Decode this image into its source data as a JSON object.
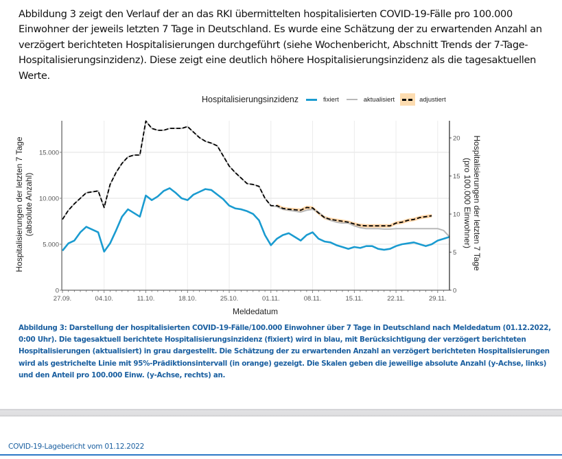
{
  "intro_text": "Abbildung 3 zeigt den Verlauf der an das RKI übermittelten hospitalisierten COVID-19-Fälle pro 100.000 Einwohner der jeweils letzten 7 Tage in Deutschland. Es wurde eine Schätzung der zu erwartenden Anzahl an verzögert berichteten Hospitalisierungen durchgeführt (siehe Wochenbericht, Abschnitt Trends der 7-Tage-Hospitalisierungsinzidenz). Diese zeigt eine deutlich höhere Hospitalisierungsinzidenz als die tagesaktuellen Werte.",
  "caption": "Abbildung 3: Darstellung der hospitalisierten COVID-19-Fälle/100.000 Einwohner über 7 Tage in Deutschland nach Meldedatum (01.12.2022, 0:00 Uhr). Die tagesaktuell berichtete Hospitalisierungsinzidenz (fixiert) wird in blau, mit Berücksichtigung der verzögert berichteten Hospitalisierungen (aktualisiert) in grau dargestellt. Die Schätzung der zu erwartenden Anzahl an verzögert berichteten Hospitalisierungen wird als gestrichelte Linie mit 95%-Prädiktionsintervall (in orange) gezeigt. Die Skalen geben die jeweilige absolute Anzahl (y-Achse, links) und den Anteil pro 100.000 Einw. (y-Achse, rechts) an.",
  "footer": "COVID-19-Lagebericht vom 01.12.2022",
  "chart_data": {
    "type": "line",
    "legend_title": "Hospitalisierungsinzidenz",
    "legend_position": "top",
    "xlabel": "Meldedatum",
    "ylabel_left": "Hospitalisierungen der letzten 7 Tage\n(absolute Anzahl)",
    "ylabel_right": "Hospitalisierungen der letzten 7 Tage\n(pro 100.000 Einwohner)",
    "ylim_left": [
      0,
      18500
    ],
    "yticks_left": [
      "0",
      "5.000",
      "10.000",
      "15.000"
    ],
    "yticks_left_values": [
      0,
      5000,
      10000,
      15000
    ],
    "ylim_right": [
      0,
      22.2
    ],
    "yticks_right": [
      "0",
      "5",
      "10",
      "15",
      "20"
    ],
    "yticks_right_values": [
      0,
      5,
      10,
      15,
      20
    ],
    "x_start": "27.09.",
    "xticks": [
      "27.09.",
      "04.10.",
      "11.10.",
      "18.10.",
      "25.10.",
      "01.11.",
      "08.11.",
      "15.11.",
      "22.11.",
      "29.11."
    ],
    "xticks_day": [
      0,
      7,
      14,
      21,
      28,
      35,
      42,
      49,
      56,
      63
    ],
    "xlim_days": [
      0,
      65
    ],
    "grid": true,
    "colors": {
      "fixiert": "#1a9bd0",
      "aktualisiert": "#b8b8b8",
      "adjustiert": "#000000",
      "interval": "#fdd3a4"
    },
    "series": [
      {
        "name": "fixiert",
        "unit": "absolute",
        "x_days": [
          0,
          1,
          2,
          3,
          4,
          5,
          6,
          7,
          8,
          9,
          10,
          11,
          12,
          13,
          14,
          15,
          16,
          17,
          18,
          19,
          20,
          21,
          22,
          23,
          24,
          25,
          26,
          27,
          28,
          29,
          30,
          31,
          32,
          33,
          34,
          35,
          36,
          37,
          38,
          39,
          40,
          41,
          42,
          43,
          44,
          45,
          46,
          47,
          48,
          49,
          50,
          51,
          52,
          53,
          54,
          55,
          56,
          57,
          58,
          59,
          60,
          61,
          62,
          63,
          64,
          65
        ],
        "values": [
          4300,
          5100,
          5400,
          6300,
          6900,
          6600,
          6300,
          4200,
          5100,
          6500,
          8000,
          8800,
          8400,
          8000,
          10300,
          9800,
          10200,
          10800,
          11100,
          10600,
          10000,
          9800,
          10400,
          10700,
          11000,
          10900,
          10400,
          9900,
          9200,
          8900,
          8800,
          8600,
          8300,
          7600,
          6000,
          4900,
          5600,
          6000,
          6200,
          5800,
          5400,
          6000,
          6300,
          5600,
          5300,
          5200,
          4900,
          4700,
          4500,
          4700,
          4600,
          4800,
          4800,
          4500,
          4400,
          4500,
          4800,
          5000,
          5100,
          5200,
          5000,
          4800,
          5000,
          5400,
          5600,
          5800
        ]
      },
      {
        "name": "aktualisiert",
        "unit": "absolute",
        "x_days": [
          0,
          1,
          2,
          3,
          4,
          5,
          6,
          7,
          8,
          9,
          10,
          11,
          12,
          13,
          14,
          15,
          16,
          17,
          18,
          19,
          20,
          21,
          22,
          23,
          24,
          25,
          26,
          27,
          28,
          29,
          30,
          31,
          32,
          33,
          34,
          35,
          36,
          37,
          38,
          39,
          40,
          41,
          42,
          43,
          44,
          45,
          46,
          47,
          48,
          49,
          50,
          51,
          52,
          53,
          54,
          55,
          56,
          57,
          58,
          59,
          60,
          61,
          62,
          63,
          64,
          65
        ],
        "values": [
          7700,
          8700,
          9400,
          10000,
          10600,
          10700,
          10800,
          9000,
          11500,
          12800,
          13800,
          14500,
          14700,
          14700,
          18400,
          17600,
          17400,
          17400,
          17600,
          17600,
          17600,
          17800,
          17200,
          16600,
          16200,
          16000,
          15700,
          14600,
          13500,
          12800,
          12200,
          11600,
          11500,
          11300,
          10000,
          9200,
          9100,
          8800,
          8700,
          8600,
          8500,
          8700,
          8800,
          8500,
          7900,
          7600,
          7400,
          7300,
          7300,
          7000,
          6800,
          6700,
          6700,
          6700,
          6650,
          6650,
          6700,
          6700,
          6700,
          6700,
          6700,
          6700,
          6700,
          6700,
          6500,
          5800
        ]
      },
      {
        "name": "adjustiert",
        "unit": "absolute",
        "x_days": [
          0,
          1,
          2,
          3,
          4,
          5,
          6,
          7,
          8,
          9,
          10,
          11,
          12,
          13,
          14,
          15,
          16,
          17,
          18,
          19,
          20,
          21,
          22,
          23,
          24,
          25,
          26,
          27,
          28,
          29,
          30,
          31,
          32,
          33,
          34,
          35,
          36,
          37,
          38,
          39,
          40,
          41,
          42,
          43,
          44,
          45,
          46,
          47,
          48,
          49,
          50,
          51,
          52,
          53,
          54,
          55,
          56,
          57,
          58,
          59,
          60,
          61,
          62
        ],
        "values": [
          7700,
          8700,
          9400,
          10000,
          10600,
          10700,
          10800,
          9000,
          11500,
          12800,
          13800,
          14500,
          14700,
          14700,
          18400,
          17600,
          17400,
          17400,
          17600,
          17600,
          17600,
          17800,
          17200,
          16600,
          16200,
          16000,
          15700,
          14600,
          13500,
          12800,
          12200,
          11600,
          11500,
          11300,
          10000,
          9200,
          9200,
          8900,
          8800,
          8750,
          8700,
          9000,
          8950,
          8400,
          7900,
          7700,
          7600,
          7500,
          7400,
          7200,
          7050,
          7000,
          7000,
          7000,
          7000,
          7000,
          7300,
          7400,
          7600,
          7700,
          7900,
          8000,
          8100
        ]
      }
    ]
  }
}
